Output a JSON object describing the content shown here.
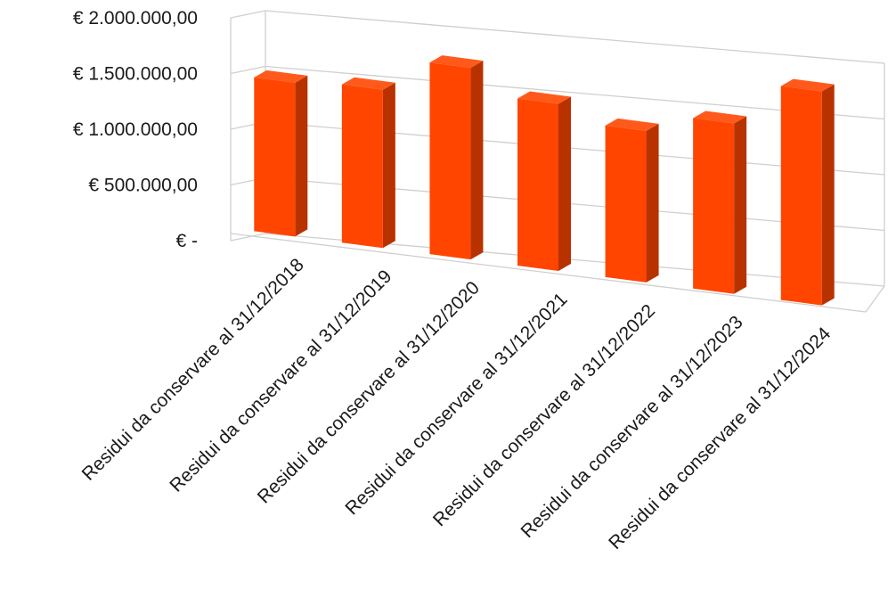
{
  "chart_data": {
    "type": "bar",
    "style": "3d-column",
    "title": "",
    "xlabel": "",
    "ylabel": "",
    "ylim": [
      0,
      2000000
    ],
    "y_ticks": [
      {
        "value": 0,
        "label": "€ -"
      },
      {
        "value": 500000,
        "label": "€ 500.000,00"
      },
      {
        "value": 1000000,
        "label": "€ 1.000.000,00"
      },
      {
        "value": 1500000,
        "label": "€ 1.500.000,00"
      },
      {
        "value": 2000000,
        "label": "€ 2.000.000,00"
      }
    ],
    "categories": [
      "Residui da conservare al 31/12/2018",
      "Residui da conservare al 31/12/2019",
      "Residui da conservare al 31/12/2020",
      "Residui da conservare al 31/12/2021",
      "Residui da conservare al 31/12/2022",
      "Residui da conservare al 31/12/2023",
      "Residui da conservare al 31/12/2024"
    ],
    "values": [
      1380000,
      1420000,
      1720000,
      1500000,
      1360000,
      1530000,
      1920000
    ],
    "grid": true,
    "legend": "none",
    "colors": {
      "bar_front": "#ff4500",
      "bar_side": "#b83200",
      "bar_top": "#ff5a1c",
      "grid": "#cfcfcf",
      "text": "#1a1a1a"
    }
  }
}
